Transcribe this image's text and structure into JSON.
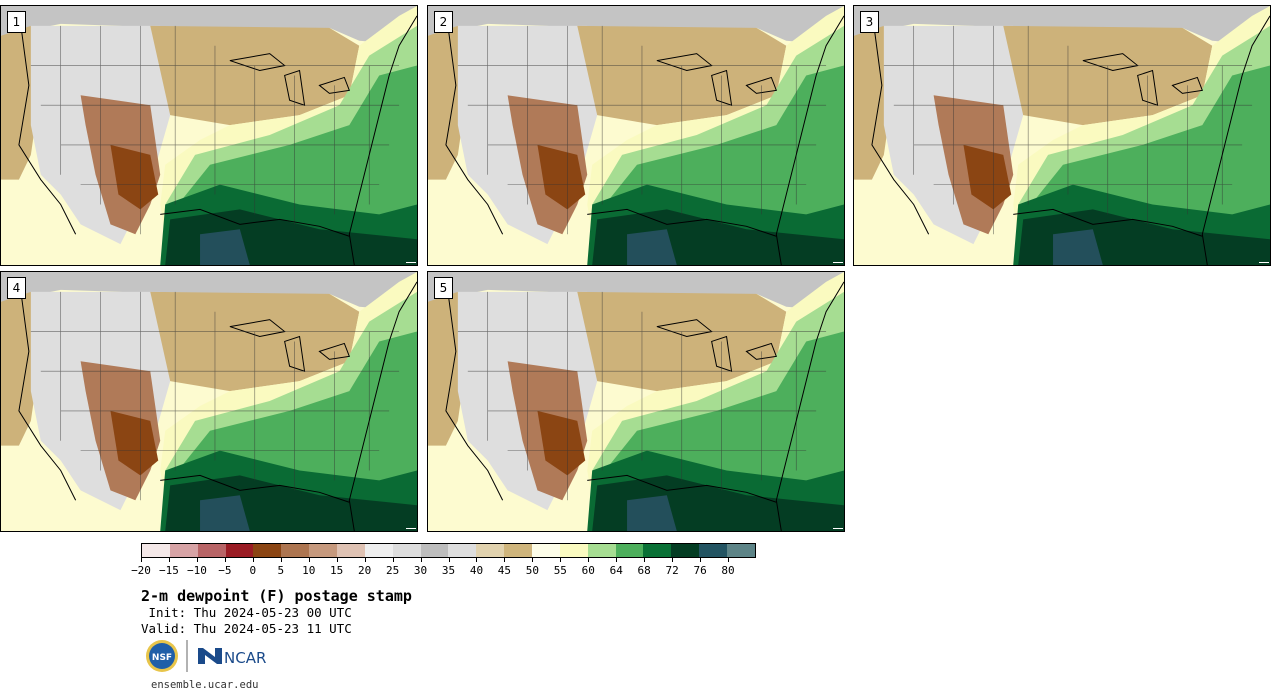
{
  "panels": [
    {
      "label": "1"
    },
    {
      "label": "2"
    },
    {
      "label": "3"
    },
    {
      "label": "4"
    },
    {
      "label": "5"
    }
  ],
  "colorbar": {
    "colors": [
      "#f4e8e8",
      "#d7a3a5",
      "#b86466",
      "#9a1c24",
      "#8b4513",
      "#ad7550",
      "#c6997d",
      "#dfc2b3",
      "#eeeeee",
      "#dddddd",
      "#bdbdbd",
      "#dedede",
      "#e1d2ae",
      "#cfb57c",
      "#fdfde8",
      "#fafac0",
      "#a6dd92",
      "#4daf5c",
      "#0a7136",
      "#043d23",
      "#235462",
      "#5d8487"
    ],
    "ticks": [
      "−20",
      "−15",
      "−10",
      "−5",
      "0",
      "5",
      "10",
      "15",
      "20",
      "25",
      "30",
      "35",
      "40",
      "45",
      "50",
      "55",
      "60",
      "64",
      "68",
      "72",
      "76",
      "80"
    ]
  },
  "legend_colors": {
    "ocean_west": "#fdfbd0",
    "canada": "#c9c9c9",
    "great_plains_dry": "#cdb27a",
    "southwest_dry": "#b07a58",
    "gulf_humid": "#0a6b34",
    "gulf_very_humid": "#234f5b",
    "southeast_moist": "#4daf5c"
  },
  "title": "2-m dewpoint (F) postage stamp",
  "init": " Init: Thu 2024-05-23 00 UTC",
  "valid": "Valid: Thu 2024-05-23 11 UTC",
  "logos": {
    "nsf": "NSF",
    "ncar": "NCAR"
  },
  "url": "ensemble.ucar.edu"
}
